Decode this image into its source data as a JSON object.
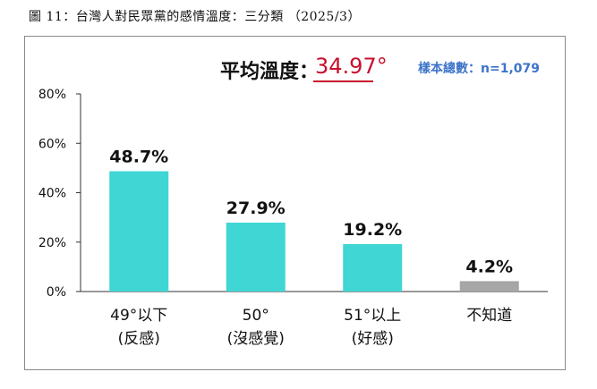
{
  "caption": "圖 11：台灣人對民眾黨的感情溫度：三分類 （2025/3）",
  "header": {
    "avg_label": "平均溫度：",
    "avg_value": "34.97°",
    "sample_label": "樣本總數：n=1,079"
  },
  "colors": {
    "bar_main": "#3fd6d4",
    "bar_unknown": "#a6a6a6",
    "accent_red": "#c8102e",
    "accent_blue": "#3d74c9"
  },
  "chart_data": {
    "type": "bar",
    "title": "",
    "xlabel": "",
    "ylabel": "",
    "ylim": [
      0,
      80
    ],
    "yticks": [
      "0%",
      "20%",
      "40%",
      "60%",
      "80%"
    ],
    "categories": [
      {
        "line1": "49°以下",
        "line2": "(反感)"
      },
      {
        "line1": "50°",
        "line2": "(沒感覺)"
      },
      {
        "line1": "51°以上",
        "line2": "(好感)"
      },
      {
        "line1": "不知道",
        "line2": ""
      }
    ],
    "values": [
      48.7,
      27.9,
      19.2,
      4.2
    ],
    "value_labels": [
      "48.7%",
      "27.9%",
      "19.2%",
      "4.2%"
    ],
    "grid": false,
    "legend": "none"
  }
}
